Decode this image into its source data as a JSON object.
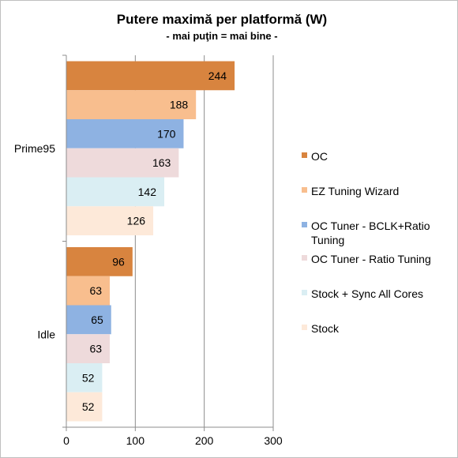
{
  "chart_data": {
    "type": "bar",
    "orientation": "horizontal",
    "title": "Putere maximă per platformă (W)",
    "subtitle": "- mai puţin = mai bine -",
    "categories": [
      "Prime95",
      "Idle"
    ],
    "series": [
      {
        "name": "OC",
        "values": [
          244,
          96
        ],
        "color": "#D8843F"
      },
      {
        "name": "EZ Tuning Wizard",
        "values": [
          188,
          63
        ],
        "color": "#F8BE8E"
      },
      {
        "name": "OC Tuner - BCLK+Ratio Tuning",
        "values": [
          170,
          65
        ],
        "color": "#8EB2E2"
      },
      {
        "name": "OC Tuner - Ratio Tuning",
        "values": [
          163,
          63
        ],
        "color": "#EEDADB"
      },
      {
        "name": "Stock + Sync All Cores",
        "values": [
          142,
          52
        ],
        "color": "#DAEEF3"
      },
      {
        "name": "Stock",
        "values": [
          126,
          52
        ],
        "color": "#FDE9D9"
      }
    ],
    "xlim": [
      0,
      300
    ],
    "xticks": [
      0,
      100,
      200,
      300
    ],
    "grid": true,
    "legend": "right",
    "data_labels": true
  }
}
